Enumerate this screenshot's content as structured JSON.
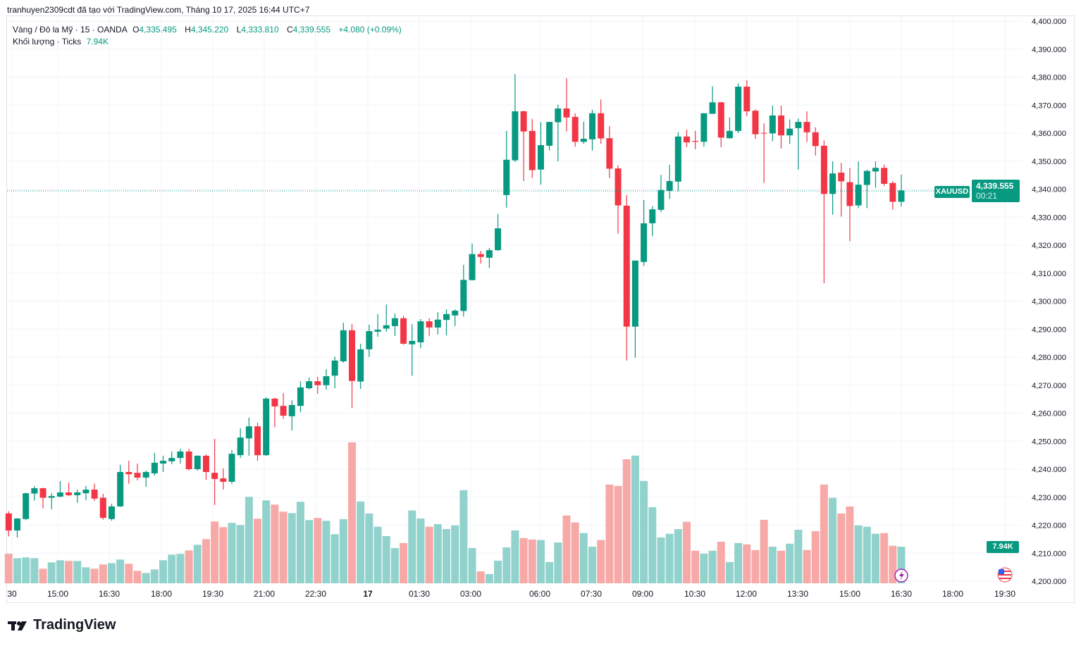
{
  "attribution": "tranhuyen2309cdt đã tạo với TradingView.com, Tháng 10 17, 2025 16:44 UTC+7",
  "legend": {
    "symbol_desc": "Vàng / Đô la Mỹ · 15 · OANDA",
    "o_label": "O",
    "o_value": "4,335.495",
    "h_label": "H",
    "h_value": "4,345.220",
    "l_label": "L",
    "l_value": "4,333.810",
    "c_label": "C",
    "c_value": "4,339.555",
    "change": "+4.080 (+0.09%)",
    "volume_label": "Khối lượng · Ticks",
    "volume_value": "7.94K"
  },
  "price_label": {
    "symbol": "XAUUSD",
    "price": "4,339.555",
    "countdown": "00:21"
  },
  "volume_label": "7.94K",
  "brand": "TradingView",
  "colors": {
    "up": "#089981",
    "down": "#f23645",
    "vol_up": "#92d2cc",
    "vol_down": "#f7a9a7"
  },
  "chart_data": {
    "type": "candlestick",
    "title": "Vàng / Đô la Mỹ · 15 · OANDA",
    "interval_minutes": 15,
    "ylim": [
      4200,
      4400
    ],
    "current_price": 4339.555,
    "y_ticks": [
      "4,400.000",
      "4,390.000",
      "4,380.000",
      "4,370.000",
      "4,360.000",
      "4,350.000",
      "4,340.000",
      "4,330.000",
      "4,320.000",
      "4,310.000",
      "4,300.000",
      "4,290.000",
      "4,280.000",
      "4,270.000",
      "4,260.000",
      "4,250.000",
      "4,240.000",
      "4,230.000",
      "4,220.000",
      "4,210.000",
      "4,200.000"
    ],
    "x_ticks": [
      "30",
      "15:00",
      "16:30",
      "18:00",
      "19:30",
      "21:00",
      "22:30",
      "17",
      "01:30",
      "03:00",
      "06:00",
      "07:30",
      "09:00",
      "10:30",
      "12:00",
      "13:30",
      "15:00",
      "16:30",
      "18:00",
      "19:30"
    ],
    "candle_fields": [
      "open",
      "high",
      "low",
      "close",
      "volume_k"
    ],
    "candles": [
      [
        4224.2,
        4225,
        4216,
        4218.1,
        6.4
      ],
      [
        4218.1,
        4222.5,
        4215.6,
        4222.4,
        5.45
      ],
      [
        4222.2,
        4231.6,
        4221.8,
        4231.4,
        5.6
      ],
      [
        4231.3,
        4234,
        4228.8,
        4233.2,
        5.45
      ],
      [
        4233.2,
        4233.4,
        4226,
        4229.8,
        3.16
      ],
      [
        4229.8,
        4231.5,
        4225.7,
        4230.4,
        4.53
      ],
      [
        4230.2,
        4235.7,
        4230,
        4231.7,
        4.99
      ],
      [
        4231.7,
        4235.2,
        4230.4,
        4230.7,
        4.84
      ],
      [
        4230.7,
        4232.7,
        4228,
        4231.7,
        4.84
      ],
      [
        4231.4,
        4234,
        4228.9,
        4232.7,
        3.47
      ],
      [
        4232.7,
        4234.8,
        4228.7,
        4229.5,
        3.16
      ],
      [
        4229.8,
        4231.2,
        4222,
        4222.6,
        4.08
      ],
      [
        4222.2,
        4227.7,
        4221.6,
        4226.7,
        4.38
      ],
      [
        4226.7,
        4241.5,
        4226.5,
        4239,
        5.15
      ],
      [
        4239,
        4243,
        4234.8,
        4238.2,
        4.23
      ],
      [
        4238.7,
        4242,
        4236,
        4237,
        2.7
      ],
      [
        4237,
        4239.5,
        4233.7,
        4239,
        2.24
      ],
      [
        4238.5,
        4245.8,
        4237.7,
        4242.3,
        3.0
      ],
      [
        4242,
        4244.8,
        4239,
        4243,
        4.99
      ],
      [
        4242.8,
        4246.3,
        4241.8,
        4244,
        6.21
      ],
      [
        4244,
        4247.3,
        4242,
        4246.3,
        6.37
      ],
      [
        4246.3,
        4247.3,
        4239.6,
        4240,
        7.13
      ],
      [
        4240,
        4245,
        4239.5,
        4244.8,
        8.35
      ],
      [
        4244.8,
        4245.2,
        4236.2,
        4239,
        9.57
      ],
      [
        4238.7,
        4250.8,
        4227.2,
        4236.5,
        13.39
      ],
      [
        4236.7,
        4240.3,
        4232.7,
        4235.5,
        12.17
      ],
      [
        4235.5,
        4246.8,
        4234.7,
        4245.5,
        13.09
      ],
      [
        4245,
        4254.6,
        4244,
        4251.3,
        12.63
      ],
      [
        4251,
        4258.4,
        4244.8,
        4255.3,
        18.74
      ],
      [
        4255.3,
        4256.6,
        4243,
        4245,
        14.0
      ],
      [
        4245,
        4265.7,
        4244.8,
        4265.2,
        17.97
      ],
      [
        4265.2,
        4265.5,
        4255,
        4262.4,
        17.06
      ],
      [
        4262.6,
        4267.2,
        4258,
        4259.1,
        15.53
      ],
      [
        4258.9,
        4264.6,
        4253.8,
        4262.9,
        15.22
      ],
      [
        4262.6,
        4271.4,
        4260.4,
        4269.2,
        17.67
      ],
      [
        4268.9,
        4272.7,
        4268.5,
        4271.4,
        13.7
      ],
      [
        4271.4,
        4273,
        4266.9,
        4270,
        14.16
      ],
      [
        4270,
        4275.7,
        4268.4,
        4273.2,
        13.54
      ],
      [
        4273.4,
        4280.2,
        4268.9,
        4278.8,
        10.64
      ],
      [
        4278.5,
        4292.3,
        4278,
        4289.6,
        13.91
      ],
      [
        4289.6,
        4291.8,
        4261.8,
        4271.5,
        30.55
      ],
      [
        4271.3,
        4284.8,
        4268.7,
        4282.8,
        17.73
      ],
      [
        4282.8,
        4291.6,
        4280.1,
        4289.3,
        15.13
      ],
      [
        4289.1,
        4295.4,
        4287.3,
        4289.8,
        12.25
      ],
      [
        4290.2,
        4298.8,
        4289.1,
        4291.4,
        10.23
      ],
      [
        4291.1,
        4295.6,
        4287.6,
        4293.9,
        7.64
      ],
      [
        4293.9,
        4294.8,
        4284.4,
        4284.8,
        8.72
      ],
      [
        4284.6,
        4291.8,
        4273.4,
        4285.8,
        15.78
      ],
      [
        4285.3,
        4293.6,
        4283.2,
        4292.8,
        14.05
      ],
      [
        4292.8,
        4293.9,
        4287.6,
        4290.6,
        12.25
      ],
      [
        4290.6,
        4296.1,
        4288.1,
        4293.4,
        12.83
      ],
      [
        4293.3,
        4297.1,
        4287.8,
        4295.4,
        11.75
      ],
      [
        4294.9,
        4297.1,
        4291.1,
        4296.6,
        12.54
      ],
      [
        4296.5,
        4313,
        4294.5,
        4307.6,
        20.18
      ],
      [
        4307.5,
        4320.6,
        4307.4,
        4316.8,
        7.64
      ],
      [
        4316.8,
        4318,
        4313.4,
        4315.8,
        2.59
      ],
      [
        4315.5,
        4319,
        4311.9,
        4318.2,
        2.02
      ],
      [
        4318.2,
        4331.1,
        4318,
        4326,
        4.9
      ],
      [
        4337.9,
        4360.8,
        4333.4,
        4350.5,
        7.78
      ],
      [
        4350.3,
        4381.1,
        4349.7,
        4367.8,
        11.46
      ],
      [
        4367.8,
        4368,
        4342.9,
        4360.6,
        9.8
      ],
      [
        4360.8,
        4365.1,
        4344,
        4346.8,
        9.51
      ],
      [
        4347,
        4363.9,
        4341.6,
        4355.7,
        9.37
      ],
      [
        4355.5,
        4364,
        4353.8,
        4364,
        4.61
      ],
      [
        4363.9,
        4370.2,
        4349.9,
        4368.8,
        8.86
      ],
      [
        4368.8,
        4379.6,
        4360.6,
        4365.6,
        14.7
      ],
      [
        4365.8,
        4367.1,
        4355.2,
        4356.9,
        13.19
      ],
      [
        4356.9,
        4364.1,
        4356.2,
        4358,
        10.88
      ],
      [
        4357.8,
        4368.3,
        4353.8,
        4367.1,
        7.93
      ],
      [
        4367.1,
        4372,
        4356.2,
        4358.1,
        9.37
      ],
      [
        4358.2,
        4362.5,
        4344,
        4347.3,
        21.4
      ],
      [
        4347.4,
        4348.5,
        4324.1,
        4334.2,
        21.11
      ],
      [
        4334.1,
        4337.9,
        4278.8,
        4290.9,
        26.88
      ],
      [
        4290.9,
        4314.5,
        4279.8,
        4314.5,
        27.67
      ],
      [
        4314,
        4336.1,
        4312.6,
        4327.8,
        22.19
      ],
      [
        4327.8,
        4333.9,
        4323.2,
        4332.8,
        16.5
      ],
      [
        4332.6,
        4345.1,
        4331.8,
        4339.7,
        9.94
      ],
      [
        4339.4,
        4348.7,
        4336.5,
        4342.9,
        10.74
      ],
      [
        4342.7,
        4360.3,
        4339.2,
        4358.8,
        11.75
      ],
      [
        4358.8,
        4361.3,
        4355,
        4356.7,
        13.33
      ],
      [
        4357.2,
        4360.8,
        4354.3,
        4356.9,
        7.06
      ],
      [
        4356.9,
        4367.1,
        4355.2,
        4367.1,
        6.41
      ],
      [
        4366.9,
        4376.7,
        4366.9,
        4371,
        7.06
      ],
      [
        4371,
        4371.2,
        4355,
        4358.4,
        9.01
      ],
      [
        4358.2,
        4365.6,
        4358,
        4360.8,
        4.61
      ],
      [
        4360.8,
        4377.7,
        4360.1,
        4376.6,
        8.72
      ],
      [
        4376.6,
        4378.9,
        4366,
        4367.8,
        8.43
      ],
      [
        4368,
        4368.5,
        4358,
        4359.6,
        7.21
      ],
      [
        4360.1,
        4363.5,
        4342.3,
        4359.9,
        13.76
      ],
      [
        4359.9,
        4369.8,
        4357.1,
        4366.3,
        7.93
      ],
      [
        4366.3,
        4369.8,
        4354.5,
        4359.2,
        7.06
      ],
      [
        4359.2,
        4364.9,
        4356.2,
        4361.6,
        8.58
      ],
      [
        4361.8,
        4365.2,
        4347,
        4364,
        11.6
      ],
      [
        4364,
        4367.8,
        4356.9,
        4360.3,
        7.21
      ],
      [
        4360.3,
        4362.1,
        4352,
        4355.4,
        11.31
      ],
      [
        4355.5,
        4357.4,
        4306.4,
        4338.3,
        21.4
      ],
      [
        4338.3,
        4349.9,
        4330.9,
        4345.6,
        18.52
      ],
      [
        4345.9,
        4349.4,
        4330.2,
        4342.8,
        15.13
      ],
      [
        4342.5,
        4347.6,
        4321.4,
        4334,
        16.65
      ],
      [
        4334.2,
        4349.9,
        4333.2,
        4341.6,
        12.54
      ],
      [
        4341.5,
        4346.9,
        4333.2,
        4346.5,
        12.25
      ],
      [
        4346.3,
        4349.9,
        4340.5,
        4347.6,
        10.74
      ],
      [
        4347.6,
        4348.7,
        4341.2,
        4341.9,
        10.88
      ],
      [
        4342.2,
        4342.9,
        4332.7,
        4335.5,
        8.14
      ],
      [
        4335.495,
        4345.22,
        4333.81,
        4339.555,
        7.94
      ]
    ]
  }
}
